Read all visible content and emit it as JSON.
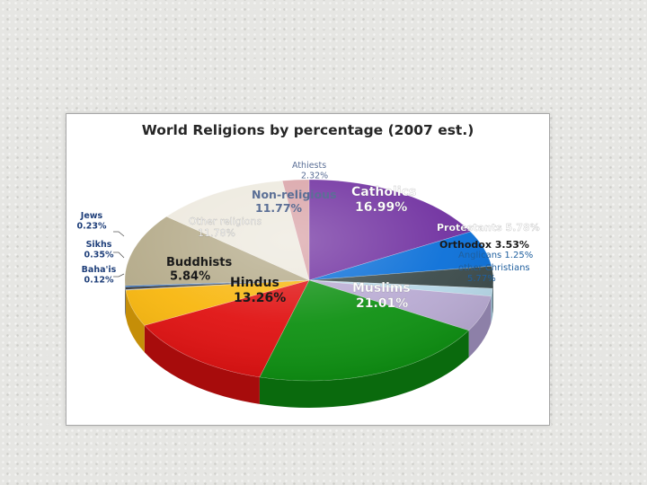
{
  "chart_data": {
    "type": "pie",
    "title": "World Religions by percentage (2007 est.)",
    "slices": [
      {
        "label": "Catholics",
        "value": 16.99,
        "value_text": "16.99%",
        "color": "#7030a0",
        "side": "#4d1f72"
      },
      {
        "label": "Protestants",
        "value": 5.78,
        "value_text": "5.78%",
        "color": "#0a6fd8",
        "side": "#074f9c"
      },
      {
        "label": "Orthodox",
        "value": 3.53,
        "value_text": "3.53%",
        "color": "#3b4a4a",
        "side": "#263030"
      },
      {
        "label": "Anglicans",
        "value": 1.25,
        "value_text": "1.25%",
        "color": "#b7d8e8",
        "side": "#8fb2c3"
      },
      {
        "label": "other Christians",
        "value": 5.77,
        "value_text": "5.77%",
        "color": "#b9abd3",
        "side": "#8d80a8"
      },
      {
        "label": "Muslims",
        "value": 21.01,
        "value_text": "21.01%",
        "color": "#0f9113",
        "side": "#0a6a0d"
      },
      {
        "label": "Hindus",
        "value": 13.26,
        "value_text": "13.26%",
        "color": "#e01212",
        "side": "#a70c0c"
      },
      {
        "label": "Buddhists",
        "value": 5.84,
        "value_text": "5.84%",
        "color": "#f8b70f",
        "side": "#c58e08"
      },
      {
        "label": "Baha'is",
        "value": 0.12,
        "value_text": "0.12%",
        "color": "#9c9c9c",
        "side": "#777777"
      },
      {
        "label": "Sikhs",
        "value": 0.35,
        "value_text": "0.35%",
        "color": "#2f2f2f",
        "side": "#1a1a1a"
      },
      {
        "label": "Jews",
        "value": 0.23,
        "value_text": "0.23%",
        "color": "#1f5fb0",
        "side": "#16467f"
      },
      {
        "label": "Other religions",
        "value": 11.78,
        "value_text": "11.78%",
        "color": "#b5ab8a",
        "side": "#8b8366"
      },
      {
        "label": "Non-religious",
        "value": 11.77,
        "value_text": "11.77%",
        "color": "#ede9de",
        "side": "#c3bfb3"
      },
      {
        "label": "Athiests",
        "value": 2.32,
        "value_text": "2.32%",
        "color": "#d9a3a7",
        "side": "#b07f83"
      }
    ]
  }
}
